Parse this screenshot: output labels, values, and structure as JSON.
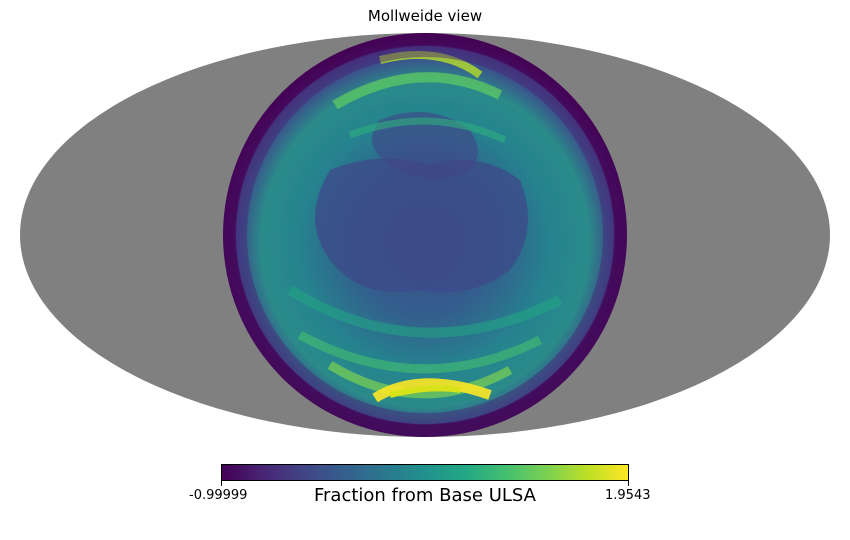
{
  "title": "Mollweide view",
  "projection": "mollweide",
  "colormap": "viridis",
  "background_color": "#808080",
  "colorbar": {
    "label": "Fraction from Base ULSA",
    "min_label": "-0.99999",
    "max_label": "1.9543",
    "min": -0.99999,
    "max": 1.9543
  }
}
